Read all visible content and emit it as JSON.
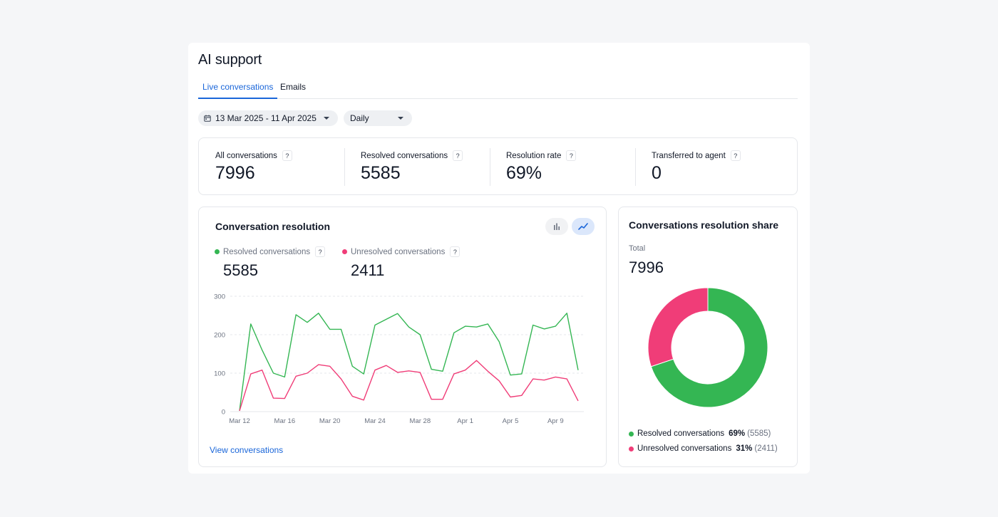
{
  "page": {
    "title": "AI support",
    "tabs": [
      {
        "label": "Live conversations",
        "active": true
      },
      {
        "label": "Emails",
        "active": false
      }
    ]
  },
  "filters": {
    "date_range": "13 Mar 2025 - 11 Apr 2025",
    "period": "Daily",
    "date_icon": "calendar-icon",
    "dropdown_icon": "caret-down-icon"
  },
  "stats": [
    {
      "label": "All conversations",
      "value": "7996"
    },
    {
      "label": "Resolved conversations",
      "value": "5585"
    },
    {
      "label": "Resolution rate",
      "value": "69%"
    },
    {
      "label": "Transferred to agent",
      "value": "0"
    }
  ],
  "help_badge": "?",
  "colors": {
    "resolved": "#34b653",
    "unresolved": "#f03d78",
    "accent": "#1a66d9"
  },
  "resolution_card": {
    "title": "Conversation resolution",
    "legend": [
      {
        "label": "Resolved conversations",
        "value": "5585"
      },
      {
        "label": "Unresolved conversations",
        "value": "2411"
      }
    ],
    "view_link": "View conversations",
    "toggles": [
      {
        "icon": "bar-chart-icon",
        "active": false
      },
      {
        "icon": "line-chart-icon",
        "active": true
      }
    ]
  },
  "share_card": {
    "title": "Conversations resolution share",
    "total_label": "Total",
    "total_value": "7996",
    "items": [
      {
        "label": "Resolved conversations",
        "percent": "69%",
        "count": "(5585)"
      },
      {
        "label": "Unresolved conversations",
        "percent": "31%",
        "count": "(2411)"
      }
    ]
  },
  "chart_data": [
    {
      "type": "line",
      "x": [
        "Mar 12",
        "Mar 13",
        "Mar 14",
        "Mar 15",
        "Mar 16",
        "Mar 17",
        "Mar 18",
        "Mar 19",
        "Mar 20",
        "Mar 21",
        "Mar 22",
        "Mar 23",
        "Mar 24",
        "Mar 25",
        "Mar 26",
        "Mar 27",
        "Mar 28",
        "Mar 29",
        "Mar 30",
        "Mar 31",
        "Apr 1",
        "Apr 2",
        "Apr 3",
        "Apr 4",
        "Apr 5",
        "Apr 6",
        "Apr 7",
        "Apr 8",
        "Apr 9",
        "Apr 10",
        "Apr 11"
      ],
      "x_tick_labels": [
        "Mar 12",
        "Mar 16",
        "Mar 20",
        "Mar 24",
        "Mar 28",
        "Apr 1",
        "Apr 5",
        "Apr 9"
      ],
      "y_ticks": [
        0,
        100,
        200,
        300
      ],
      "ylim": [
        0,
        300
      ],
      "grid": true,
      "series": [
        {
          "name": "Resolved conversations",
          "values": [
            2,
            228,
            160,
            100,
            90,
            252,
            232,
            256,
            214,
            214,
            118,
            98,
            225,
            240,
            255,
            220,
            200,
            110,
            105,
            205,
            222,
            220,
            228,
            182,
            95,
            98,
            225,
            215,
            222,
            256,
            108
          ]
        },
        {
          "name": "Unresolved conversations",
          "values": [
            2,
            98,
            108,
            35,
            34,
            92,
            100,
            122,
            118,
            85,
            40,
            30,
            108,
            120,
            102,
            106,
            102,
            32,
            32,
            98,
            108,
            133,
            105,
            80,
            38,
            42,
            85,
            82,
            90,
            85,
            28
          ]
        }
      ]
    },
    {
      "type": "pie",
      "title": "Conversations resolution share",
      "categories": [
        "Resolved conversations",
        "Unresolved conversations"
      ],
      "values": [
        5585,
        2411
      ],
      "percent": [
        69,
        31
      ]
    }
  ]
}
